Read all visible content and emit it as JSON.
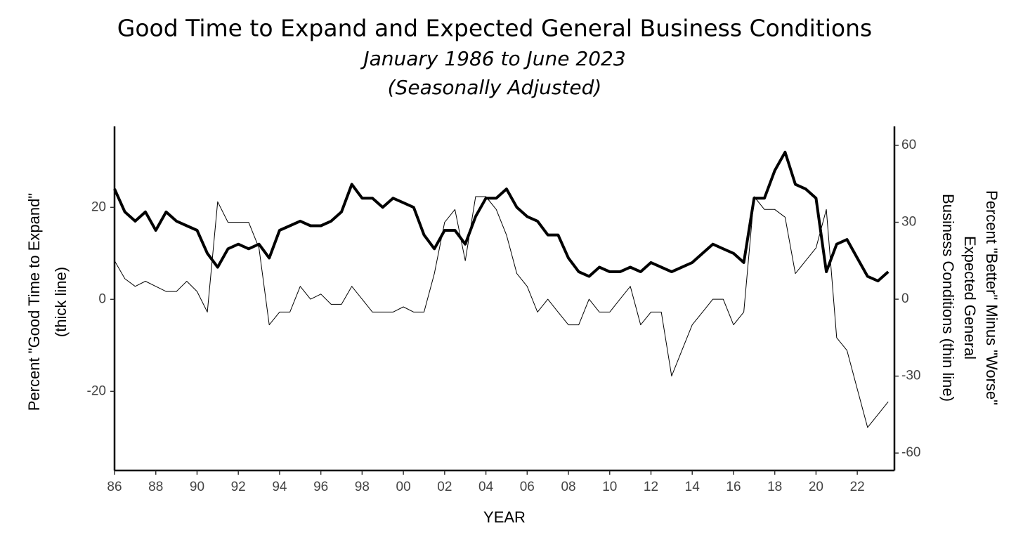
{
  "chart_data": {
    "type": "line",
    "title": "Good Time to Expand and Expected General Business Conditions",
    "subtitle": [
      "January 1986 to June 2023",
      "(Seasonally Adjusted)"
    ],
    "x_label": "YEAR",
    "y_label": [
      "Percent \"Good Time to Expand\"",
      "(thick line)"
    ],
    "y2_label": [
      "Percent \"Better\" Minus \"Worse\"",
      "Expected General",
      "Business Conditions (thin line)"
    ],
    "x": [
      1986,
      1986.5,
      1987,
      1987.5,
      1988,
      1988.5,
      1989,
      1989.5,
      1990,
      1990.5,
      1991,
      1991.5,
      1992,
      1992.5,
      1993,
      1993.5,
      1994,
      1994.5,
      1995,
      1995.5,
      1996,
      1996.5,
      1997,
      1997.5,
      1998,
      1998.5,
      1999,
      1999.5,
      2000,
      2000.5,
      2001,
      2001.5,
      2002,
      2002.5,
      2003,
      2003.5,
      2004,
      2004.5,
      2005,
      2005.5,
      2006,
      2006.5,
      2007,
      2007.5,
      2008,
      2008.5,
      2009,
      2009.5,
      2010,
      2010.5,
      2011,
      2011.5,
      2012,
      2012.5,
      2013,
      2013.5,
      2014,
      2014.5,
      2015,
      2015.5,
      2016,
      2016.5,
      2017,
      2017.5,
      2018,
      2018.5,
      2019,
      2019.5,
      2020,
      2020.5,
      2021,
      2021.5,
      2022,
      2022.5,
      2023,
      2023.5
    ],
    "series": [
      {
        "name": "Good Time to Expand",
        "color": "#000000",
        "width": 4,
        "values": [
          24,
          19,
          17,
          19,
          15,
          19,
          17,
          16,
          15,
          10,
          7,
          11,
          12,
          11,
          12,
          9,
          15,
          16,
          17,
          16,
          16,
          17,
          19,
          25,
          22,
          22,
          20,
          22,
          21,
          20,
          14,
          11,
          15,
          15,
          12,
          18,
          22,
          22,
          24,
          20,
          18,
          17,
          14,
          14,
          9,
          6,
          5,
          7,
          6,
          6,
          7,
          6,
          8,
          7,
          6,
          7,
          8,
          10,
          12,
          11,
          10,
          8,
          22,
          22,
          28,
          32,
          25,
          24,
          22,
          6,
          12,
          13,
          9,
          5,
          4,
          6
        ]
      },
      {
        "name": "Expected General Business Conditions",
        "color": "#000000",
        "width": 1,
        "axis": "y2",
        "values": [
          15,
          8,
          5,
          7,
          5,
          3,
          3,
          7,
          3,
          -5,
          38,
          30,
          30,
          30,
          20,
          -10,
          -5,
          -5,
          5,
          0,
          2,
          -2,
          -2,
          5,
          0,
          -5,
          -5,
          -5,
          -3,
          -5,
          -5,
          10,
          30,
          35,
          15,
          40,
          40,
          35,
          25,
          10,
          5,
          -5,
          0,
          -5,
          -10,
          -10,
          0,
          -5,
          -5,
          0,
          5,
          -10,
          -5,
          -5,
          -30,
          -20,
          -10,
          -5,
          0,
          0,
          -10,
          -5,
          40,
          35,
          35,
          32,
          10,
          15,
          20,
          35,
          -15,
          -20,
          -35,
          -50,
          -45,
          -40
        ]
      }
    ],
    "xlim": [
      1986,
      2023.8
    ],
    "xticks": [
      {
        "value": 1986,
        "label": "86"
      },
      {
        "value": 1988,
        "label": "88"
      },
      {
        "value": 1990,
        "label": "90"
      },
      {
        "value": 1992,
        "label": "92"
      },
      {
        "value": 1994,
        "label": "94"
      },
      {
        "value": 1996,
        "label": "96"
      },
      {
        "value": 1998,
        "label": "98"
      },
      {
        "value": 2000,
        "label": "00"
      },
      {
        "value": 2002,
        "label": "02"
      },
      {
        "value": 2004,
        "label": "04"
      },
      {
        "value": 2006,
        "label": "06"
      },
      {
        "value": 2008,
        "label": "08"
      },
      {
        "value": 2010,
        "label": "10"
      },
      {
        "value": 2012,
        "label": "12"
      },
      {
        "value": 2014,
        "label": "14"
      },
      {
        "value": 2016,
        "label": "16"
      },
      {
        "value": 2018,
        "label": "18"
      },
      {
        "value": 2020,
        "label": "20"
      },
      {
        "value": 2022,
        "label": "22"
      }
    ],
    "ylim": [
      -37.2,
      37.6
    ],
    "yticks": [
      -20,
      0,
      20
    ],
    "y2lim": [
      -66.8,
      67.4
    ],
    "y2ticks": [
      -60,
      -30,
      0,
      30,
      60
    ],
    "grid": false
  }
}
